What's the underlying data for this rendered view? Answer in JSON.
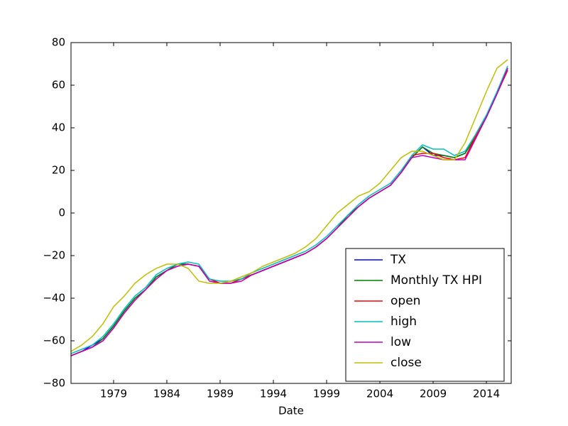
{
  "chart_data": {
    "type": "line",
    "x_label": "Date",
    "x": [
      1975,
      1976,
      1977,
      1978,
      1979,
      1980,
      1981,
      1982,
      1983,
      1984,
      1985,
      1986,
      1987,
      1988,
      1989,
      1990,
      1991,
      1992,
      1993,
      1994,
      1995,
      1996,
      1997,
      1998,
      1999,
      2000,
      2001,
      2002,
      2003,
      2004,
      2005,
      2006,
      2007,
      2008,
      2009,
      2010,
      2011,
      2012,
      2013,
      2014,
      2015,
      2016
    ],
    "xlim": [
      1975,
      2016.33
    ],
    "xticks": [
      1979,
      1984,
      1989,
      1994,
      1999,
      2004,
      2009,
      2014
    ],
    "ylim": [
      -80,
      80
    ],
    "yticks": [
      {
        "value": -80,
        "label": "−80"
      },
      {
        "value": -60,
        "label": "−60"
      },
      {
        "value": -40,
        "label": "−40"
      },
      {
        "value": -20,
        "label": "−20"
      },
      0,
      20,
      40,
      60,
      80
    ],
    "legend": "lower right",
    "series": [
      {
        "name": "TX",
        "color": "#0000ff",
        "values": [
          -67,
          -65,
          -62,
          -59,
          -53,
          -46,
          -40,
          -36,
          -30,
          -27,
          -24,
          -24,
          -25,
          -31,
          -33,
          -32,
          -31,
          -29,
          -27,
          -25,
          -23,
          -21,
          -19,
          -16,
          -12,
          -7,
          -1,
          3,
          7,
          10,
          13,
          19,
          26,
          31,
          27,
          27,
          26,
          28,
          36,
          45,
          56,
          68
        ]
      },
      {
        "name": "Monthly TX HPI",
        "color": "#008000",
        "values": [
          -67,
          -65,
          -63,
          -59,
          -53,
          -46,
          -40,
          -36,
          -30,
          -27,
          -24,
          -24,
          -25,
          -31,
          -33,
          -32,
          -31,
          -29,
          -27,
          -25,
          -23,
          -21,
          -19,
          -16,
          -12,
          -7,
          -1,
          3,
          7,
          10,
          13,
          19,
          26,
          31,
          28,
          27,
          26,
          28,
          36,
          45,
          56,
          68
        ]
      },
      {
        "name": "open",
        "color": "#ff0000",
        "values": [
          -67,
          -65,
          -63,
          -60,
          -54,
          -47,
          -41,
          -36,
          -31,
          -27,
          -25,
          -24,
          -25,
          -31,
          -33,
          -33,
          -31,
          -29,
          -27,
          -25,
          -23,
          -21,
          -19,
          -16,
          -12,
          -7,
          -2,
          3,
          7,
          10,
          13,
          19,
          27,
          28,
          28,
          26,
          25,
          26,
          36,
          45,
          56,
          67
        ]
      },
      {
        "name": "high",
        "color": "#00bfbf",
        "values": [
          -66,
          -64,
          -62,
          -58,
          -52,
          -45,
          -39,
          -35,
          -29,
          -26,
          -24,
          -23,
          -24,
          -31,
          -32,
          -32,
          -31,
          -28,
          -26,
          -24,
          -22,
          -20,
          -18,
          -15,
          -11,
          -6,
          -1,
          4,
          8,
          11,
          14,
          20,
          27,
          32,
          30,
          30,
          27,
          29,
          37,
          46,
          57,
          69
        ]
      },
      {
        "name": "low",
        "color": "#bf00bf",
        "values": [
          -67,
          -65,
          -63,
          -60,
          -54,
          -47,
          -41,
          -36,
          -31,
          -27,
          -25,
          -24,
          -25,
          -32,
          -33,
          -33,
          -32,
          -29,
          -27,
          -25,
          -23,
          -21,
          -19,
          -16,
          -12,
          -7,
          -2,
          3,
          7,
          10,
          13,
          19,
          26,
          27,
          26,
          25,
          25,
          25,
          35,
          45,
          56,
          68
        ]
      },
      {
        "name": "close",
        "color": "#bfbf00",
        "values": [
          -65,
          -62,
          -58,
          -52,
          -44,
          -39,
          -33,
          -29,
          -26,
          -24,
          -24,
          -26,
          -32,
          -33,
          -33,
          -32,
          -30,
          -28,
          -25,
          -23,
          -21,
          -19,
          -16,
          -12,
          -6,
          0,
          4,
          8,
          10,
          14,
          20,
          26,
          29,
          29,
          27,
          25,
          25,
          33,
          45,
          57,
          68,
          72
        ]
      }
    ]
  }
}
